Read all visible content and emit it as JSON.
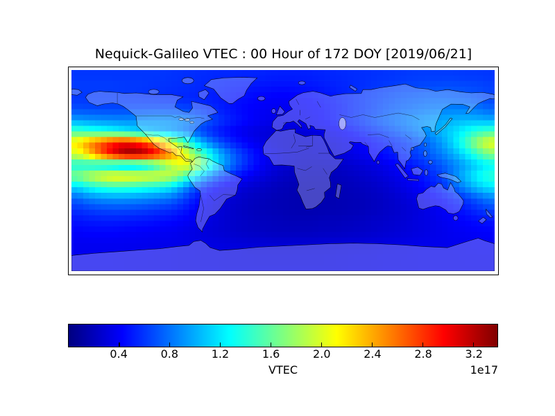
{
  "title": "Nequick-Galileo VTEC : 00 Hour of 172 DOY [2019/06/21]",
  "colorbar": {
    "label": "VTEC",
    "offset_text": "1e17",
    "ticks": [
      "0.4",
      "0.8",
      "1.2",
      "1.6",
      "2.0",
      "2.4",
      "2.8",
      "3.2"
    ],
    "colormap": "jet",
    "colormap_stops": [
      {
        "t": 0.0,
        "color": "#000080"
      },
      {
        "t": 0.125,
        "color": "#0000ff"
      },
      {
        "t": 0.375,
        "color": "#00ffff"
      },
      {
        "t": 0.625,
        "color": "#ffff00"
      },
      {
        "t": 0.875,
        "color": "#ff0000"
      },
      {
        "t": 1.0,
        "color": "#800000"
      }
    ]
  },
  "chart_data": {
    "type": "heatmap",
    "title": "Nequick-Galileo VTEC : 00 Hour of 172 DOY [2019/06/21]",
    "colorbar_label": "VTEC",
    "scale_offset": "1e17",
    "colorbar_ticks": [
      0.4,
      0.8,
      1.2,
      1.6,
      2.0,
      2.4,
      2.8,
      3.2
    ],
    "vmin": 0.0,
    "vmax": 3.39,
    "colormap": "jet",
    "projection": "equirectangular world map with coastlines and country borders",
    "lon_range": [
      -180,
      180
    ],
    "lat_range": [
      -90,
      90
    ],
    "cell_size_deg": 10,
    "row_lat_centers": [
      85,
      75,
      65,
      55,
      45,
      35,
      25,
      15,
      5,
      -5,
      -15,
      -25,
      -35,
      -45,
      -55,
      -65,
      -75,
      -85
    ],
    "col_lon_centers": [
      -175,
      -165,
      -155,
      -145,
      -135,
      -125,
      -115,
      -105,
      -95,
      -85,
      -75,
      -65,
      -55,
      -45,
      -35,
      -25,
      -15,
      -5,
      5,
      15,
      25,
      35,
      45,
      55,
      65,
      75,
      85,
      95,
      105,
      115,
      125,
      135,
      145,
      155,
      165,
      175
    ],
    "values_1e17": [
      [
        0.6,
        0.6,
        0.6,
        0.6,
        0.6,
        0.6,
        0.6,
        0.6,
        0.59,
        0.58,
        0.57,
        0.56,
        0.55,
        0.55,
        0.54,
        0.54,
        0.53,
        0.52,
        0.52,
        0.52,
        0.53,
        0.54,
        0.55,
        0.56,
        0.57,
        0.58,
        0.59,
        0.6,
        0.61,
        0.62,
        0.62,
        0.62,
        0.62,
        0.61,
        0.61,
        0.6
      ],
      [
        0.62,
        0.62,
        0.62,
        0.62,
        0.61,
        0.61,
        0.6,
        0.59,
        0.58,
        0.57,
        0.56,
        0.54,
        0.53,
        0.51,
        0.5,
        0.49,
        0.48,
        0.47,
        0.47,
        0.48,
        0.49,
        0.51,
        0.53,
        0.55,
        0.57,
        0.59,
        0.61,
        0.63,
        0.65,
        0.66,
        0.67,
        0.68,
        0.68,
        0.67,
        0.66,
        0.64
      ],
      [
        0.6,
        0.6,
        0.6,
        0.6,
        0.6,
        0.59,
        0.58,
        0.57,
        0.56,
        0.55,
        0.54,
        0.52,
        0.5,
        0.48,
        0.46,
        0.44,
        0.42,
        0.41,
        0.41,
        0.42,
        0.44,
        0.47,
        0.5,
        0.54,
        0.58,
        0.62,
        0.66,
        0.69,
        0.72,
        0.74,
        0.76,
        0.76,
        0.75,
        0.73,
        0.7,
        0.65
      ],
      [
        0.68,
        0.67,
        0.66,
        0.66,
        0.66,
        0.67,
        0.68,
        0.68,
        0.68,
        0.66,
        0.63,
        0.58,
        0.53,
        0.48,
        0.44,
        0.41,
        0.39,
        0.38,
        0.38,
        0.39,
        0.41,
        0.44,
        0.48,
        0.53,
        0.58,
        0.63,
        0.68,
        0.73,
        0.77,
        0.8,
        0.83,
        0.85,
        0.86,
        0.85,
        0.82,
        0.76
      ],
      [
        0.95,
        0.92,
        0.9,
        0.89,
        0.88,
        0.9,
        0.92,
        0.93,
        0.92,
        0.88,
        0.8,
        0.7,
        0.6,
        0.52,
        0.46,
        0.41,
        0.37,
        0.35,
        0.35,
        0.36,
        0.39,
        0.43,
        0.48,
        0.54,
        0.6,
        0.67,
        0.74,
        0.8,
        0.86,
        0.91,
        0.95,
        0.99,
        1.02,
        1.04,
        1.03,
        1.0
      ],
      [
        1.5,
        1.42,
        1.36,
        1.3,
        1.22,
        1.14,
        1.06,
        1.0,
        0.95,
        0.85,
        0.72,
        0.6,
        0.5,
        0.43,
        0.37,
        0.33,
        0.3,
        0.29,
        0.29,
        0.3,
        0.32,
        0.35,
        0.39,
        0.44,
        0.5,
        0.56,
        0.63,
        0.7,
        0.78,
        0.86,
        0.94,
        1.04,
        1.15,
        1.28,
        1.42,
        1.5
      ],
      [
        2.2,
        2.5,
        2.7,
        2.9,
        3.0,
        2.9,
        2.7,
        2.4,
        2.0,
        1.6,
        1.2,
        0.9,
        0.7,
        0.55,
        0.45,
        0.38,
        0.32,
        0.28,
        0.26,
        0.26,
        0.27,
        0.29,
        0.32,
        0.36,
        0.4,
        0.45,
        0.5,
        0.56,
        0.62,
        0.7,
        0.8,
        0.95,
        1.15,
        1.45,
        1.8,
        2.05
      ],
      [
        2.0,
        2.3,
        2.7,
        3.05,
        3.3,
        3.35,
        3.2,
        2.9,
        2.55,
        2.15,
        1.75,
        1.4,
        1.05,
        0.8,
        0.62,
        0.48,
        0.38,
        0.32,
        0.28,
        0.26,
        0.26,
        0.27,
        0.3,
        0.33,
        0.37,
        0.41,
        0.46,
        0.52,
        0.58,
        0.65,
        0.74,
        0.85,
        1.0,
        1.2,
        1.45,
        1.7
      ],
      [
        1.35,
        1.3,
        1.2,
        1.1,
        1.0,
        1.05,
        1.2,
        1.5,
        1.85,
        2.1,
        1.9,
        1.5,
        1.1,
        0.82,
        0.62,
        0.48,
        0.37,
        0.3,
        0.26,
        0.23,
        0.22,
        0.22,
        0.24,
        0.26,
        0.29,
        0.32,
        0.36,
        0.41,
        0.47,
        0.54,
        0.62,
        0.72,
        0.84,
        0.98,
        1.12,
        1.25
      ],
      [
        1.7,
        1.9,
        2.05,
        2.15,
        2.15,
        2.1,
        2.05,
        2.0,
        1.9,
        1.6,
        1.25,
        0.95,
        0.7,
        0.55,
        0.44,
        0.36,
        0.3,
        0.25,
        0.22,
        0.2,
        0.19,
        0.19,
        0.2,
        0.22,
        0.24,
        0.27,
        0.3,
        0.34,
        0.4,
        0.46,
        0.54,
        0.64,
        0.85,
        1.05,
        1.25,
        1.4
      ],
      [
        1.15,
        1.3,
        1.4,
        1.45,
        1.45,
        1.4,
        1.35,
        1.3,
        1.2,
        0.95,
        0.7,
        0.52,
        0.42,
        0.35,
        0.3,
        0.26,
        0.23,
        0.2,
        0.18,
        0.17,
        0.17,
        0.17,
        0.18,
        0.19,
        0.21,
        0.23,
        0.26,
        0.3,
        0.35,
        0.41,
        0.48,
        0.57,
        0.72,
        0.9,
        1.08,
        1.2
      ],
      [
        0.75,
        0.85,
        0.9,
        0.92,
        0.92,
        0.9,
        0.87,
        0.83,
        0.78,
        0.65,
        0.5,
        0.4,
        0.33,
        0.28,
        0.25,
        0.22,
        0.2,
        0.18,
        0.17,
        0.16,
        0.16,
        0.16,
        0.17,
        0.18,
        0.19,
        0.21,
        0.23,
        0.26,
        0.3,
        0.34,
        0.39,
        0.45,
        0.52,
        0.61,
        0.72,
        0.84
      ],
      [
        0.58,
        0.62,
        0.65,
        0.66,
        0.66,
        0.64,
        0.62,
        0.59,
        0.56,
        0.5,
        0.42,
        0.35,
        0.3,
        0.26,
        0.23,
        0.21,
        0.19,
        0.18,
        0.17,
        0.16,
        0.16,
        0.17,
        0.17,
        0.18,
        0.19,
        0.21,
        0.23,
        0.25,
        0.28,
        0.31,
        0.35,
        0.39,
        0.44,
        0.5,
        0.57,
        0.64
      ],
      [
        0.48,
        0.5,
        0.51,
        0.51,
        0.5,
        0.49,
        0.48,
        0.46,
        0.44,
        0.41,
        0.37,
        0.33,
        0.29,
        0.26,
        0.24,
        0.22,
        0.21,
        0.2,
        0.19,
        0.19,
        0.19,
        0.2,
        0.2,
        0.21,
        0.22,
        0.24,
        0.25,
        0.27,
        0.29,
        0.32,
        0.34,
        0.37,
        0.4,
        0.43,
        0.46,
        0.48
      ],
      [
        0.42,
        0.43,
        0.43,
        0.43,
        0.42,
        0.41,
        0.4,
        0.39,
        0.38,
        0.36,
        0.33,
        0.3,
        0.28,
        0.26,
        0.24,
        0.23,
        0.22,
        0.21,
        0.21,
        0.21,
        0.21,
        0.22,
        0.22,
        0.23,
        0.24,
        0.25,
        0.27,
        0.28,
        0.3,
        0.32,
        0.34,
        0.36,
        0.38,
        0.39,
        0.41,
        0.42
      ],
      [
        0.38,
        0.38,
        0.38,
        0.38,
        0.38,
        0.37,
        0.37,
        0.36,
        0.36,
        0.35,
        0.34,
        0.33,
        0.32,
        0.31,
        0.3,
        0.29,
        0.29,
        0.28,
        0.28,
        0.28,
        0.28,
        0.29,
        0.29,
        0.3,
        0.3,
        0.31,
        0.32,
        0.33,
        0.34,
        0.35,
        0.36,
        0.36,
        0.37,
        0.37,
        0.38,
        0.38
      ],
      [
        0.37,
        0.37,
        0.37,
        0.37,
        0.36,
        0.36,
        0.36,
        0.35,
        0.35,
        0.34,
        0.34,
        0.33,
        0.33,
        0.32,
        0.32,
        0.31,
        0.31,
        0.31,
        0.31,
        0.31,
        0.31,
        0.31,
        0.32,
        0.32,
        0.33,
        0.33,
        0.34,
        0.34,
        0.35,
        0.35,
        0.36,
        0.36,
        0.36,
        0.37,
        0.37,
        0.37
      ],
      [
        0.36,
        0.36,
        0.36,
        0.36,
        0.36,
        0.35,
        0.35,
        0.35,
        0.35,
        0.34,
        0.34,
        0.34,
        0.34,
        0.33,
        0.33,
        0.33,
        0.33,
        0.33,
        0.33,
        0.33,
        0.33,
        0.33,
        0.33,
        0.34,
        0.34,
        0.34,
        0.35,
        0.35,
        0.35,
        0.35,
        0.36,
        0.36,
        0.36,
        0.36,
        0.36,
        0.36
      ]
    ]
  }
}
